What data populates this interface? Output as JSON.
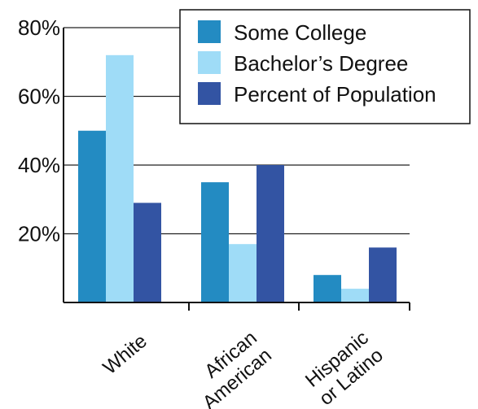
{
  "chart_data": {
    "type": "bar",
    "categories": [
      [
        "White"
      ],
      [
        "African",
        "American"
      ],
      [
        "Hispanic",
        "or Latino"
      ]
    ],
    "series": [
      {
        "name": "Some College",
        "color": "#238bc2",
        "values": [
          50,
          35,
          8
        ]
      },
      {
        "name": "Bachelor’s Degree",
        "color": "#9fdcf7",
        "values": [
          72,
          17,
          4
        ]
      },
      {
        "name": "Percent of Population",
        "color": "#3354a3",
        "values": [
          29,
          40,
          16
        ]
      }
    ],
    "yticks": [
      {
        "value": 20,
        "label": "20%"
      },
      {
        "value": 40,
        "label": "40%"
      },
      {
        "value": 60,
        "label": "60%"
      },
      {
        "value": 80,
        "label": "80%"
      }
    ],
    "ylim": [
      0,
      80
    ],
    "grid": true,
    "legend_position": "top-right"
  }
}
